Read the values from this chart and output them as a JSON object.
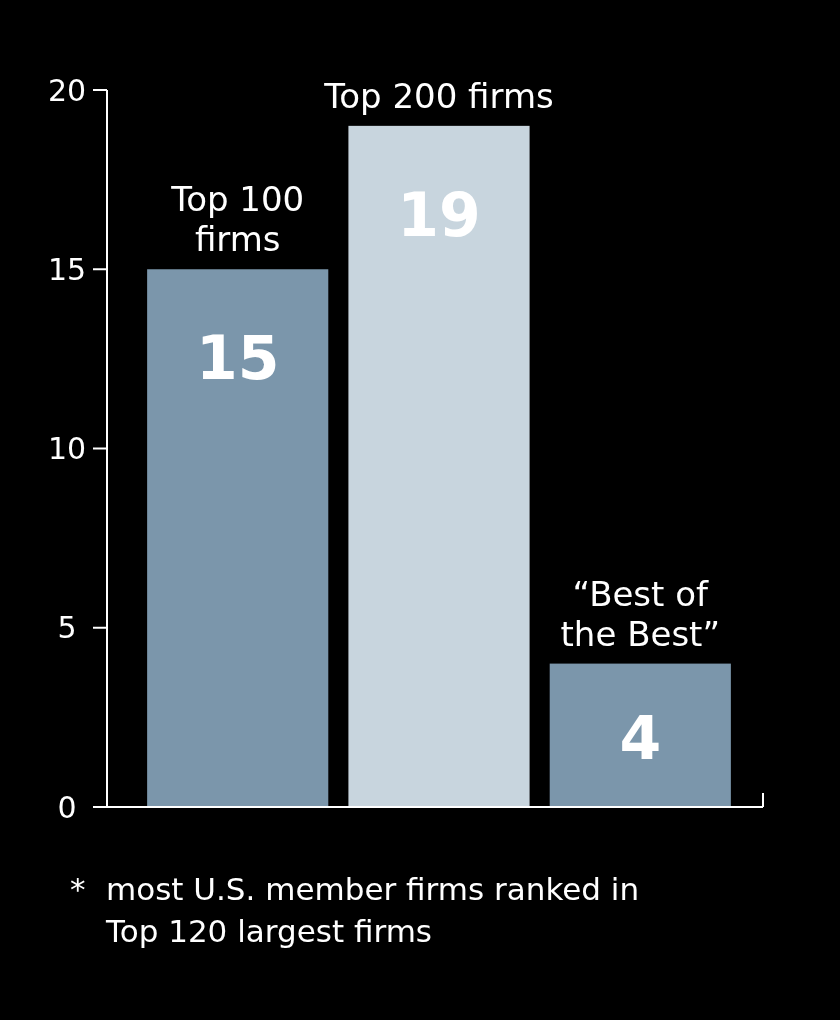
{
  "chart_data": {
    "type": "bar",
    "categories": [
      "Top 100 firms",
      "Top 200 firms",
      "“Best of the Best”"
    ],
    "values": [
      15,
      19,
      4
    ],
    "colors": [
      "#7b96ab",
      "#c8d5de",
      "#7b96ab"
    ],
    "ylim": [
      0,
      20
    ],
    "yticks": [
      0,
      5,
      10,
      15,
      20
    ],
    "data_labels": true,
    "grid": false,
    "annotations": [
      "* most U.S. member firms ranked in Top 120 largest firms"
    ]
  }
}
